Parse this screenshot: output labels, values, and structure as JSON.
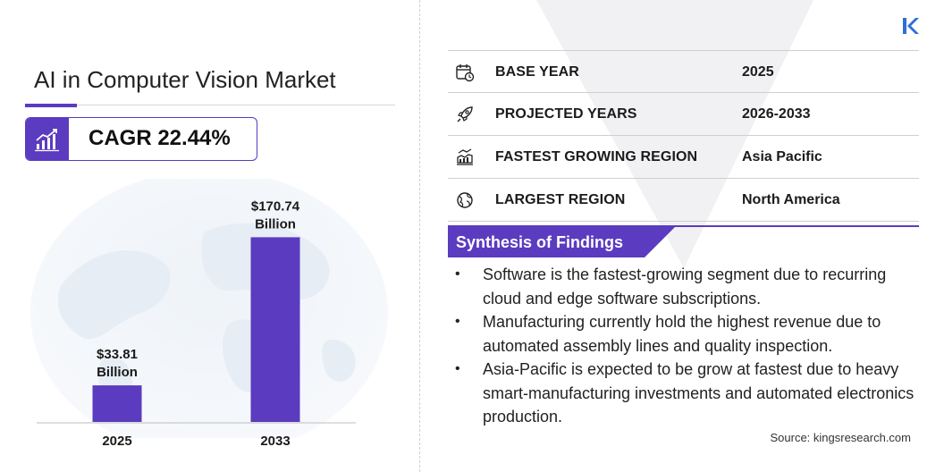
{
  "header": {
    "title": "AI in Computer Vision Market",
    "cagr_text": "CAGR 22.44%"
  },
  "chart_data": {
    "type": "bar",
    "categories": [
      "2025",
      "2033"
    ],
    "values": [
      33.81,
      170.74
    ],
    "value_labels": [
      [
        "$33.81",
        "Billion"
      ],
      [
        "$170.74",
        "Billion"
      ]
    ],
    "title": "",
    "xlabel": "",
    "ylabel": "",
    "ylim": [
      0,
      200
    ],
    "grid": false,
    "legend": "none",
    "bar_color": "#5b3bbf"
  },
  "market_facts": [
    {
      "icon": "calendar-icon",
      "label": "BASE YEAR",
      "value": "2025"
    },
    {
      "icon": "rocket-icon",
      "label": "PROJECTED YEARS",
      "value": "2026-2033"
    },
    {
      "icon": "growth-region-icon",
      "label": "FASTEST GROWING REGION",
      "value": "Asia Pacific"
    },
    {
      "icon": "globe-icon",
      "label": "LARGEST REGION",
      "value": "North America"
    }
  ],
  "synthesis": {
    "title": "Synthesis of Findings",
    "findings": [
      "Software is the fastest-growing segment due to recurring cloud and edge software subscriptions.",
      "Manufacturing currently hold the highest revenue due to automated assembly lines and quality inspection.",
      "Asia-Pacific is expected to be grow at fastest due to heavy smart-manufacturing investments and automated electronics production."
    ]
  },
  "source": "Source:  kingsresearch.com",
  "colors": {
    "accent": "#5b3bbf",
    "text": "#1b1b1b",
    "divider": "#cfcfcf"
  }
}
